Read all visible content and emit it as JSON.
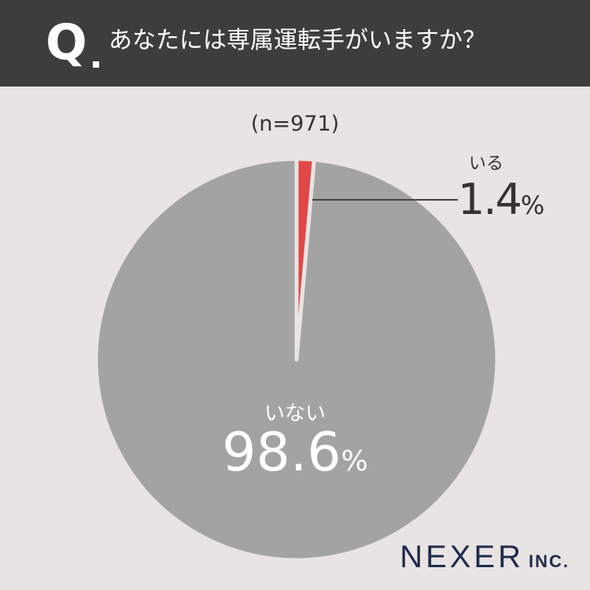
{
  "header": {
    "q_mark": "Q",
    "question": "あなたには専属運転手がいますか？"
  },
  "chart_data": {
    "type": "pie",
    "n_label": "(n=971)",
    "slices": [
      {
        "name": "いる",
        "value": 1.4,
        "value_text": "1.4",
        "unit": "%",
        "color": "#e04848"
      },
      {
        "name": "いない",
        "value": 98.6,
        "value_text": "98.6",
        "unit": "%",
        "color": "#a3a3a3"
      }
    ],
    "separator_color": "#e8e4e3",
    "leader_line_color": "#444444"
  },
  "logo": {
    "main": "NEXER",
    "sub": "INC."
  }
}
